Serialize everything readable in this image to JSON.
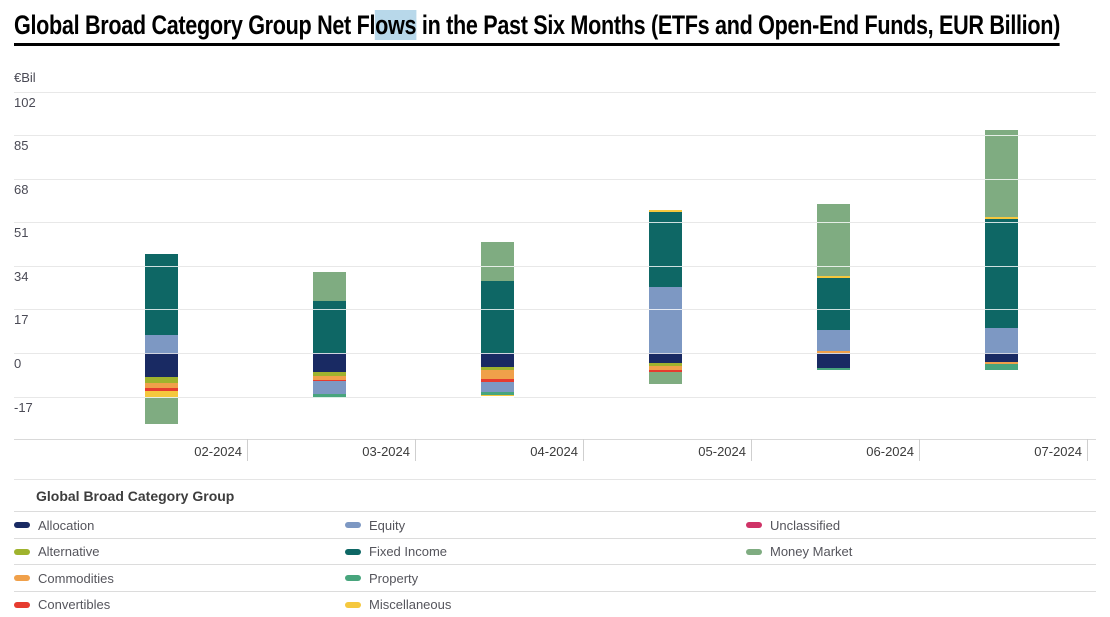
{
  "title": {
    "pre": "Global Broad Category Group Net Fl",
    "highlighted": "ows",
    "post": " in the Past Six Months (ETFs and Open-End Funds, EUR Billion)",
    "full": "Global Broad Category Group Net Flows in the Past Six Months (ETFs and Open-End Funds, EUR Billion)",
    "highlight_color": "#b8d8ea"
  },
  "chart": {
    "unit_label": "€Bil"
  },
  "chart_data": {
    "type": "bar",
    "stacked": true,
    "title": "Global Broad Category Group Net Flows in the Past Six Months (ETFs and Open-End Funds, EUR Billion)",
    "ylabel": "€Bil",
    "xlabel": "",
    "grid": true,
    "legend_position": "bottom",
    "y_ticks": [
      102,
      85,
      68,
      51,
      34,
      17,
      0,
      -17
    ],
    "ylim": [
      -29,
      105
    ],
    "categories": [
      "02-2024",
      "03-2024",
      "04-2024",
      "05-2024",
      "06-2024",
      "07-2024"
    ],
    "series": [
      {
        "name": "Allocation",
        "color": "#192a63",
        "values": [
          -9.5,
          -7.5,
          -5.5,
          -4.1,
          -5.7,
          -3.6
        ]
      },
      {
        "name": "Alternative",
        "color": "#9fb32e",
        "values": [
          -2.4,
          -1.6,
          -1.2,
          -1.0,
          0,
          0
        ]
      },
      {
        "name": "Commodities",
        "color": "#f0a04a",
        "values": [
          -1.6,
          -1.6,
          -3.6,
          -1.6,
          0.8,
          -0.8
        ]
      },
      {
        "name": "Convertibles",
        "color": "#e63b2f",
        "values": [
          -1.2,
          -0.4,
          -1.2,
          -0.8,
          0,
          0
        ]
      },
      {
        "name": "Equity",
        "color": "#7d98c3",
        "values": [
          7.1,
          -5.1,
          -3.6,
          25.6,
          8.1,
          9.9
        ]
      },
      {
        "name": "Fixed Income",
        "color": "#0e6765",
        "values": [
          31.6,
          20.2,
          28.3,
          29.4,
          20.4,
          42.3
        ]
      },
      {
        "name": "Property",
        "color": "#48a57d",
        "values": [
          0,
          -1.2,
          -1.2,
          0,
          -1.0,
          -2.4
        ]
      },
      {
        "name": "Miscellaneous",
        "color": "#f5c83e",
        "values": [
          -2.4,
          0,
          -0.6,
          0.8,
          0.9,
          0.8
        ]
      },
      {
        "name": "Unclassified",
        "color": "#cf3367",
        "values": [
          0,
          0,
          0,
          0,
          0,
          0
        ]
      },
      {
        "name": "Money Market",
        "color": "#7fac81",
        "values": [
          -10.5,
          11.5,
          15.2,
          -4.5,
          28.1,
          34.3
        ]
      }
    ]
  },
  "legend": {
    "header": "Global Broad Category Group",
    "columns": [
      [
        {
          "label": "Allocation",
          "color": "#192a63"
        },
        {
          "label": "Alternative",
          "color": "#9fb32e"
        },
        {
          "label": "Commodities",
          "color": "#f0a04a"
        },
        {
          "label": "Convertibles",
          "color": "#e63b2f"
        }
      ],
      [
        {
          "label": "Equity",
          "color": "#7d98c3"
        },
        {
          "label": "Fixed Income",
          "color": "#0e6765"
        },
        {
          "label": "Property",
          "color": "#48a57d"
        },
        {
          "label": "Miscellaneous",
          "color": "#f5c83e"
        }
      ],
      [
        {
          "label": "Unclassified",
          "color": "#cf3367"
        },
        {
          "label": "Money Market",
          "color": "#7fac81"
        }
      ]
    ]
  }
}
